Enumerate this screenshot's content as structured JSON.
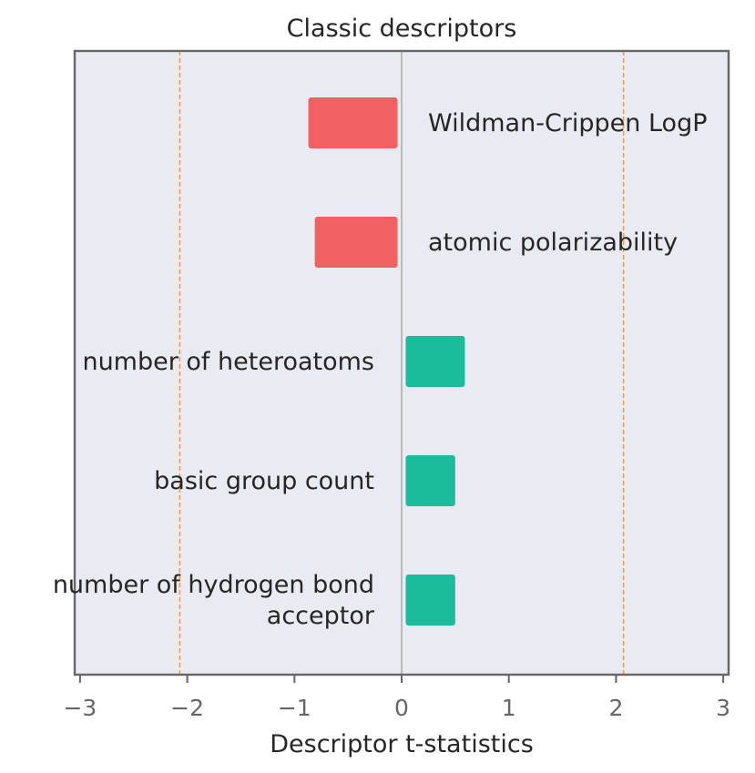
{
  "chart_data": {
    "type": "bar",
    "orientation": "horizontal",
    "title": "Classic descriptors",
    "xlabel": "Descriptor t-statistics",
    "ylabel": "",
    "xlim": [
      -3.05,
      3.05
    ],
    "xticks": [
      -3,
      -2,
      -1,
      0,
      1,
      2,
      3
    ],
    "xtick_labels": [
      "−3",
      "−2",
      "−1",
      "0",
      "1",
      "2",
      "3"
    ],
    "threshold_lines": [
      -2.07,
      2.07
    ],
    "grid": false,
    "categories": [
      "Wildman-Crippen LogP",
      "atomic polarizability",
      "number of heteroatoms",
      "basic group count",
      "number of hydrogen bond acceptor"
    ],
    "category_label_lines": [
      [
        "Wildman-Crippen LogP"
      ],
      [
        "atomic polarizability"
      ],
      [
        "number of heteroatoms"
      ],
      [
        "basic group count"
      ],
      [
        "number of hydrogen bond",
        "acceptor"
      ]
    ],
    "values": [
      -0.87,
      -0.81,
      0.59,
      0.5,
      0.5
    ],
    "colors": {
      "negative": "#f06262",
      "positive": "#1abc9c",
      "threshold": "#f5a142",
      "zero_line": "#999999",
      "plot_background": "#eaeaf2",
      "frame": "#666666"
    }
  }
}
